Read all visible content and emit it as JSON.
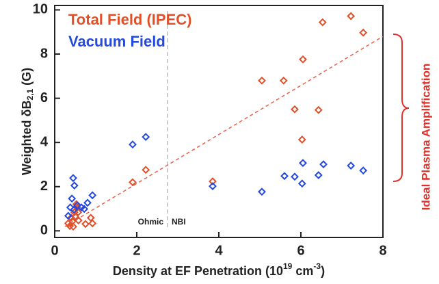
{
  "chart_data": {
    "type": "scatter",
    "legend_title_lines": [
      "Total Field (IPEC)",
      "Vacuum Field"
    ],
    "x_label": [
      "Density at EF Penetration (10",
      "19",
      " cm",
      "-3",
      ")"
    ],
    "y_label": [
      "Weighted δB",
      "2,1",
      " (G)"
    ],
    "annotations": {
      "left_region": "Ohmic",
      "right_region": "NBI",
      "bracket": "Ideal Plasma Amplification"
    },
    "divider_x": 2.75,
    "trend_line": {
      "x": [
        0.25,
        8
      ],
      "y": [
        0.2,
        8.8
      ]
    },
    "xlim": [
      0,
      8
    ],
    "ylim": [
      -0.3,
      10.2
    ],
    "xticks": [
      0,
      2,
      4,
      6,
      8
    ],
    "yticks": [
      0,
      2,
      4,
      6,
      8,
      10
    ],
    "series": [
      {
        "name": "Total Field (IPEC)",
        "color": "#e0502a",
        "x": [
          7.22,
          6.53,
          7.52,
          6.05,
          5.05,
          5.58,
          5.85,
          6.43,
          6.03,
          2.22,
          1.9,
          3.85,
          0.37,
          0.43,
          0.5,
          0.57,
          0.53,
          0.33,
          0.4,
          0.48,
          0.55,
          0.75,
          0.88,
          0.92,
          0.45,
          0.58
        ],
        "values": [
          9.72,
          9.44,
          8.97,
          7.76,
          6.8,
          6.8,
          5.5,
          5.47,
          4.13,
          2.76,
          2.2,
          2.24,
          0.22,
          0.43,
          0.65,
          0.84,
          1.21,
          0.34,
          0.59,
          0.84,
          1.06,
          0.31,
          0.59,
          0.34,
          0.19,
          0.47
        ]
      },
      {
        "name": "Vacuum Field",
        "color": "#2448e0",
        "x": [
          1.9,
          2.22,
          3.85,
          5.05,
          5.6,
          5.85,
          6.05,
          6.03,
          6.43,
          6.55,
          7.22,
          7.52,
          0.45,
          0.48,
          0.42,
          0.38,
          0.47,
          0.65,
          0.72,
          0.8,
          0.92,
          0.33,
          0.55
        ],
        "values": [
          3.91,
          4.25,
          2.02,
          1.77,
          2.48,
          2.45,
          3.07,
          2.14,
          2.52,
          3.01,
          2.95,
          2.73,
          2.39,
          2.05,
          1.46,
          1.06,
          0.96,
          1.06,
          0.99,
          1.27,
          1.61,
          0.68,
          1.15
        ]
      }
    ]
  }
}
